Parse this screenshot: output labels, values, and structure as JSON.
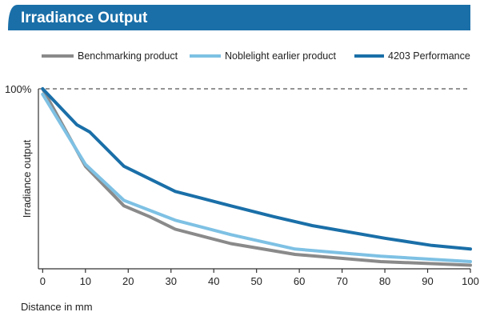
{
  "chart_data": {
    "type": "line",
    "title": "Irradiance Output",
    "xlabel": "Distance in mm",
    "ylabel": "Irradiance output",
    "y_ref_label": "100%",
    "xlim": [
      -1,
      100
    ],
    "ylim": [
      0,
      100
    ],
    "xticks": [
      0,
      10,
      20,
      30,
      40,
      50,
      60,
      70,
      80,
      90,
      100
    ],
    "series": [
      {
        "name": "Benchmarking product",
        "color": "#8a8a8a",
        "points": [
          [
            0,
            100
          ],
          [
            10,
            57
          ],
          [
            19,
            35
          ],
          [
            25,
            29
          ],
          [
            31,
            22
          ],
          [
            44,
            14
          ],
          [
            59,
            8
          ],
          [
            79,
            4
          ],
          [
            100,
            2
          ]
        ]
      },
      {
        "name": "Noblelight earlier product",
        "color": "#7ec1e4",
        "points": [
          [
            0,
            97
          ],
          [
            10,
            58
          ],
          [
            19,
            38
          ],
          [
            31,
            27
          ],
          [
            44,
            19
          ],
          [
            59,
            11
          ],
          [
            79,
            7
          ],
          [
            100,
            4
          ]
        ]
      },
      {
        "name": "4203 Performance",
        "color": "#1a6fa8",
        "points": [
          [
            0,
            100
          ],
          [
            8,
            80
          ],
          [
            11,
            76
          ],
          [
            19,
            57
          ],
          [
            31,
            43
          ],
          [
            44,
            35
          ],
          [
            54,
            29
          ],
          [
            63,
            24
          ],
          [
            80,
            17
          ],
          [
            91,
            13
          ],
          [
            100,
            11
          ]
        ]
      }
    ]
  },
  "colors": {
    "banner": "#1a6fa8",
    "banner_text": "#ffffff",
    "axis": "#333333"
  }
}
